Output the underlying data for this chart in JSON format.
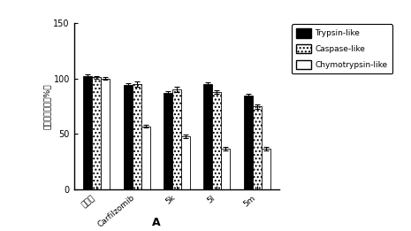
{
  "categories": [
    "对照组",
    "Carfilzomib",
    "5k",
    "5l",
    "5m"
  ],
  "trypsin_like": [
    102,
    94,
    87,
    95,
    85
  ],
  "caspase_like": [
    101,
    95,
    90,
    88,
    75
  ],
  "chymotrypsin_like": [
    100,
    57,
    48,
    37,
    37
  ],
  "trypsin_err": [
    1.5,
    1.5,
    2.0,
    1.5,
    1.5
  ],
  "caspase_err": [
    1.5,
    2.0,
    2.5,
    1.5,
    2.0
  ],
  "chymotrypsin_err": [
    1.0,
    1.5,
    1.5,
    1.5,
    1.5
  ],
  "ylabel": "蛋白酶体活性（%）",
  "xlabel": "A",
  "ylim": [
    0,
    150
  ],
  "yticks": [
    0,
    50,
    100,
    150
  ],
  "legend_labels": [
    "Trypsin-like",
    "Caspase-like",
    "Chymotrypsin-like"
  ],
  "bar_width": 0.22,
  "bg_color": "#ffffff"
}
